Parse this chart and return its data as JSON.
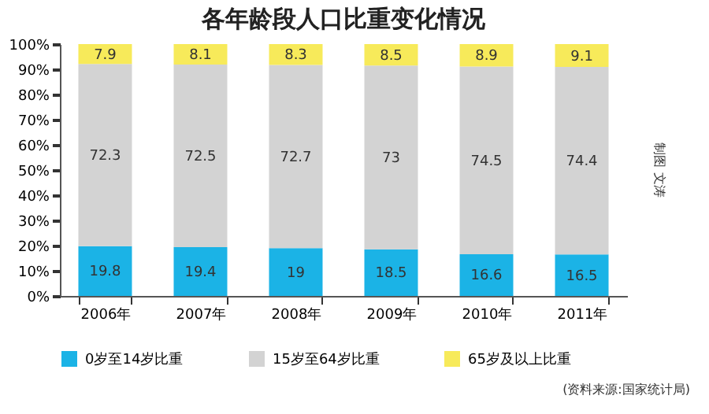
{
  "chart_data": {
    "type": "bar",
    "stacked": true,
    "title": "各年龄段人口比重变化情况",
    "categories": [
      "2006年",
      "2007年",
      "2008年",
      "2009年",
      "2010年",
      "2011年"
    ],
    "series": [
      {
        "name": "0岁至14岁比重",
        "color": "#1bb3e6",
        "values": [
          19.8,
          19.4,
          19.0,
          18.5,
          16.6,
          16.5
        ]
      },
      {
        "name": "15岁至64岁比重",
        "color": "#d3d3d3",
        "values": [
          72.3,
          72.5,
          72.7,
          73,
          74.5,
          74.4
        ]
      },
      {
        "name": "65岁及以上比重",
        "color": "#f7ea5a",
        "values": [
          7.9,
          8.1,
          8.3,
          8.5,
          8.9,
          9.1
        ]
      }
    ],
    "ylim": [
      0,
      100
    ],
    "yticks": [
      {
        "value": 0,
        "label": "0%"
      },
      {
        "value": 10,
        "label": "10%"
      },
      {
        "value": 20,
        "label": "20%"
      },
      {
        "value": 30,
        "label": "30%"
      },
      {
        "value": 40,
        "label": "40%"
      },
      {
        "value": 50,
        "label": "50%"
      },
      {
        "value": 60,
        "label": "60%"
      },
      {
        "value": 70,
        "label": "70%"
      },
      {
        "value": 80,
        "label": "80%"
      },
      {
        "value": 90,
        "label": "90%"
      },
      {
        "value": 100,
        "label": "100%"
      }
    ],
    "data_labels": true,
    "grid": false,
    "legend": "bottom",
    "annotations": [
      "(资料来源:国家统计局)",
      "制图 文涛"
    ]
  }
}
